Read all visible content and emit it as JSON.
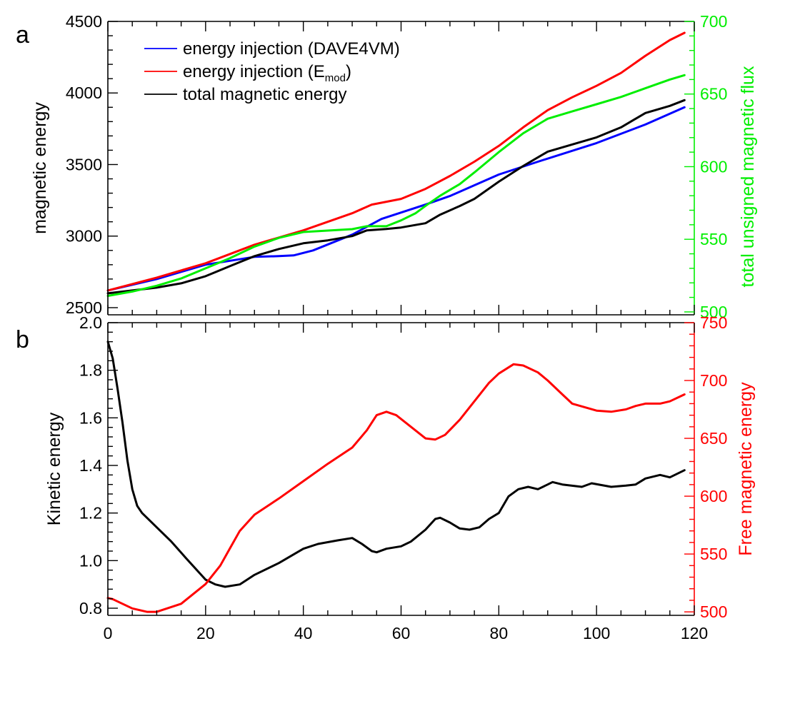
{
  "chart_data": [
    {
      "panel_label": "a",
      "type": "line",
      "xlim": [
        0,
        120
      ],
      "y_left": {
        "label": "magnetic energy",
        "lim": [
          2450,
          4500
        ],
        "ticks": [
          2500,
          3000,
          3500,
          4000,
          4500
        ],
        "color": "#000000"
      },
      "y_right": {
        "label": "total unsigned magnetic flux",
        "lim": [
          498,
          700
        ],
        "ticks": [
          500,
          550,
          600,
          650,
          700
        ],
        "color": "#00ee00"
      },
      "legend_position": "top-left",
      "legend": [
        {
          "text": "energy injection (DAVE4VM)",
          "color": "#0000ff"
        },
        {
          "text_main": "energy injection (E",
          "text_sub": "mod",
          "text_end": ")",
          "color": "#ff0000"
        },
        {
          "text": "total magnetic energy",
          "color": "#000000"
        }
      ],
      "series": [
        {
          "name": "energy injection (DAVE4VM)",
          "color": "#0000ff",
          "axis": "left",
          "x": [
            0,
            10,
            20,
            30,
            35,
            38,
            42,
            50,
            56,
            65,
            70,
            80,
            88,
            100,
            110,
            118
          ],
          "y": [
            2620,
            2700,
            2800,
            2855,
            2860,
            2865,
            2900,
            3010,
            3120,
            3220,
            3280,
            3430,
            3520,
            3650,
            3780,
            3900
          ]
        },
        {
          "name": "energy injection (E_mod)",
          "color": "#ff0000",
          "axis": "left",
          "x": [
            0,
            10,
            20,
            30,
            40,
            50,
            54,
            60,
            65,
            70,
            75,
            80,
            85,
            90,
            95,
            100,
            105,
            110,
            115,
            118
          ],
          "y": [
            2620,
            2710,
            2810,
            2940,
            3040,
            3160,
            3220,
            3260,
            3330,
            3420,
            3520,
            3630,
            3760,
            3880,
            3970,
            4050,
            4140,
            4260,
            4370,
            4420
          ]
        },
        {
          "name": "total magnetic energy",
          "color": "#000000",
          "axis": "left",
          "x": [
            0,
            5,
            10,
            15,
            20,
            25,
            30,
            35,
            40,
            45,
            50,
            53,
            57,
            60,
            65,
            68,
            72,
            75,
            80,
            85,
            90,
            95,
            100,
            105,
            110,
            115,
            118
          ],
          "y": [
            2600,
            2620,
            2640,
            2670,
            2720,
            2790,
            2860,
            2910,
            2950,
            2970,
            3000,
            3040,
            3050,
            3060,
            3090,
            3150,
            3210,
            3260,
            3380,
            3490,
            3590,
            3640,
            3690,
            3760,
            3860,
            3910,
            3950
          ]
        },
        {
          "name": "total unsigned magnetic flux",
          "color": "#00ee00",
          "axis": "right",
          "x": [
            0,
            5,
            10,
            15,
            20,
            25,
            30,
            35,
            40,
            45,
            50,
            53,
            57,
            60,
            63,
            65,
            68,
            72,
            75,
            80,
            85,
            90,
            95,
            100,
            105,
            110,
            115,
            118
          ],
          "y": [
            511,
            514,
            518,
            523,
            530,
            537,
            545,
            551,
            555,
            556,
            557,
            559,
            559,
            563,
            568,
            573,
            580,
            588,
            596,
            610,
            623,
            633,
            638,
            643,
            648,
            654,
            660,
            663
          ]
        }
      ]
    },
    {
      "panel_label": "b",
      "type": "line",
      "xlim": [
        0,
        120
      ],
      "x_ticks": [
        0,
        20,
        40,
        60,
        80,
        100,
        120
      ],
      "y_left": {
        "label": "Kinetic energy",
        "lim": [
          0.77,
          2.0
        ],
        "ticks": [
          0.8,
          1.0,
          1.2,
          1.4,
          1.6,
          1.8,
          2.0
        ],
        "color": "#000000"
      },
      "y_right": {
        "label": "Free magnetic energy",
        "lim": [
          497,
          750
        ],
        "ticks": [
          500,
          550,
          600,
          650,
          700,
          750
        ],
        "color": "#ff0000"
      },
      "series": [
        {
          "color": "#000000",
          "axis": "left",
          "x": [
            0,
            1,
            2,
            3,
            4,
            5,
            6,
            7,
            8,
            10,
            13,
            16,
            20,
            22,
            24,
            27,
            30,
            35,
            40,
            43,
            47,
            50,
            52,
            54,
            55,
            57,
            60,
            62,
            65,
            67,
            68,
            70,
            72,
            74,
            76,
            78,
            80,
            82,
            84,
            86,
            88,
            90,
            91,
            93,
            97,
            99,
            103,
            106,
            108,
            110,
            113,
            115,
            118
          ],
          "y": [
            1.92,
            1.85,
            1.72,
            1.58,
            1.42,
            1.3,
            1.23,
            1.2,
            1.18,
            1.14,
            1.08,
            1.01,
            0.92,
            0.9,
            0.89,
            0.9,
            0.94,
            0.99,
            1.05,
            1.07,
            1.085,
            1.095,
            1.07,
            1.04,
            1.035,
            1.05,
            1.06,
            1.08,
            1.13,
            1.175,
            1.18,
            1.16,
            1.135,
            1.13,
            1.14,
            1.175,
            1.2,
            1.27,
            1.3,
            1.31,
            1.3,
            1.32,
            1.33,
            1.32,
            1.31,
            1.325,
            1.31,
            1.315,
            1.32,
            1.345,
            1.36,
            1.35,
            1.38
          ]
        },
        {
          "color": "#ff0000",
          "axis": "right",
          "x": [
            0,
            1,
            3,
            5,
            8,
            10,
            15,
            20,
            23,
            25,
            27,
            30,
            35,
            40,
            45,
            50,
            53,
            55,
            57,
            59,
            62,
            65,
            67,
            69,
            72,
            75,
            78,
            80,
            83,
            85,
            88,
            90,
            93,
            95,
            100,
            103,
            106,
            108,
            110,
            113,
            115,
            118
          ],
          "y": [
            512,
            511,
            507,
            503,
            500,
            500,
            507,
            524,
            540,
            555,
            570,
            584,
            598,
            613,
            628,
            642,
            657,
            670,
            673,
            670,
            660,
            650,
            649,
            653,
            666,
            682,
            698,
            706,
            714,
            713,
            707,
            700,
            688,
            680,
            674,
            673,
            675,
            678,
            680,
            680,
            682,
            688
          ]
        }
      ]
    }
  ]
}
